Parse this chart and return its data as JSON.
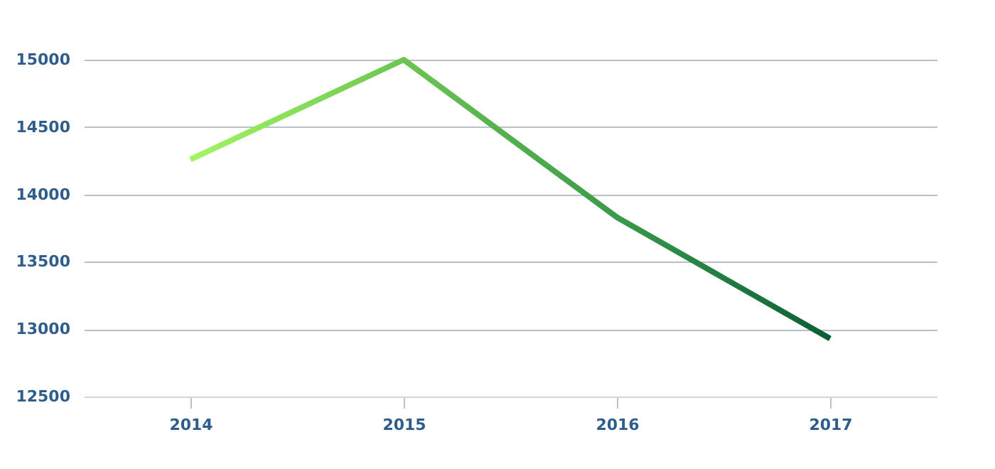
{
  "chart_data": {
    "type": "line",
    "categories": [
      "2014",
      "2015",
      "2016",
      "2017"
    ],
    "series": [
      {
        "colors": [
          "#a3f563",
          "#6cc552",
          "#3a9a4a",
          "#0a5e35"
        ],
        "values": [
          14260,
          15000,
          13830,
          12930
        ]
      }
    ],
    "ylim": [
      12500,
      15000
    ],
    "yticks": [
      12500,
      13000,
      13500,
      14000,
      14500,
      15000
    ],
    "grid": "y",
    "marker": "none",
    "line_style": "solid"
  }
}
